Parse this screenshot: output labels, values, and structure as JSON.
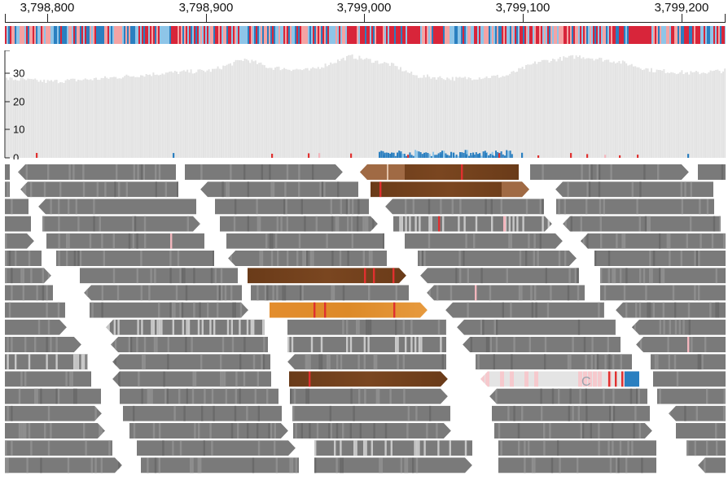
{
  "ruler": {
    "ticks": [
      {
        "position": 3798800,
        "label": "3,798,800"
      },
      {
        "position": 3798900,
        "label": "3,798,900"
      },
      {
        "position": 3799000,
        "label": "3,799,000"
      },
      {
        "position": 3799100,
        "label": "3,799,100"
      },
      {
        "position": 3799200,
        "label": "3,799,200"
      }
    ],
    "region_start": 3798785.6,
    "region_end": 3799227.4
  },
  "coverage": {
    "axis_ticks": [
      {
        "value": 0,
        "label": "0"
      },
      {
        "value": 10,
        "label": "10"
      },
      {
        "value": 20,
        "label": "20"
      },
      {
        "value": 30,
        "label": "30"
      }
    ],
    "max_value": 38
  },
  "colors": {
    "read_gray": "#7a7a7a",
    "read_brown": "#6b3d1b",
    "read_orange": "#e08a2a",
    "mismatch_red": "#e0302f",
    "mismatch_pink": "#f3b6bd",
    "mismatch_blue": "#2a7fc0",
    "coverage_fill": "#e3e3e3",
    "base_A": "#d8253a",
    "base_C": "#2a7fc0",
    "base_G": "#f4a3a3",
    "base_T": "#8ec5e8"
  },
  "reads": {
    "mismatch_base_label": "C"
  }
}
